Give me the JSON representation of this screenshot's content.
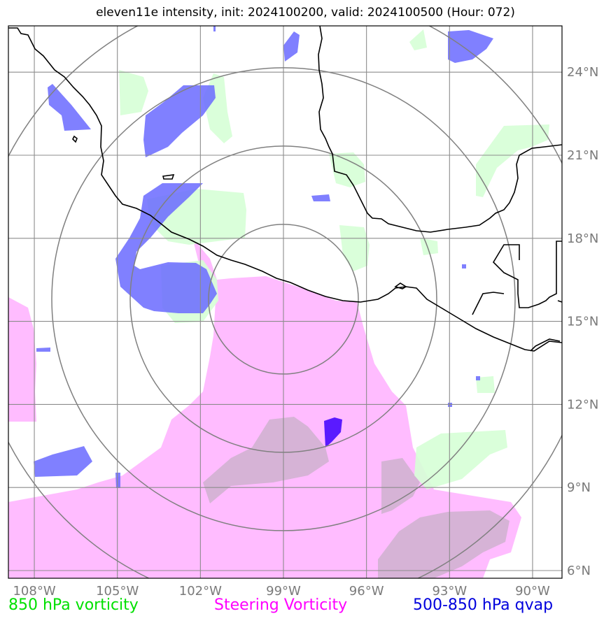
{
  "title": "eleven11e intensity, init: 2024100200, valid: 2024100500 (Hour: 072)",
  "map": {
    "lon_range": [
      -109,
      -89
    ],
    "lat_range": [
      5,
      26
    ],
    "lon_ticks": [
      {
        "value": -108,
        "label": "108°W"
      },
      {
        "value": -105,
        "label": "105°W"
      },
      {
        "value": -102,
        "label": "102°W"
      },
      {
        "value": -99,
        "label": "99°W"
      },
      {
        "value": -96,
        "label": "96°W"
      },
      {
        "value": -93,
        "label": "93°W"
      },
      {
        "value": -90,
        "label": "90°W"
      }
    ],
    "lat_ticks": [
      {
        "value": 6,
        "label": "6°N"
      },
      {
        "value": 9,
        "label": "9°N"
      },
      {
        "value": 12,
        "label": "12°N"
      },
      {
        "value": 15,
        "label": "15°N"
      },
      {
        "value": 18,
        "label": "18°N"
      },
      {
        "value": 21,
        "label": "21°N"
      },
      {
        "value": 24,
        "label": "24°N"
      }
    ],
    "range_rings_center": {
      "lon": -99,
      "lat": 15.8
    },
    "colors": {
      "vorticity_850": "#d6ffd6",
      "steering_vorticity": "#ffb8ff",
      "qvap_500_850": "#6a6aff",
      "grid": "#8c8c8c",
      "coast": "#000000"
    }
  },
  "legend": {
    "vorticity": {
      "label": "850 hPa vorticity",
      "color": "#00e000"
    },
    "steering": {
      "label": "Steering Vorticity",
      "color": "#ff00ff"
    },
    "qvap": {
      "label": "500-850 hPa qvap",
      "color": "#0000dd"
    }
  }
}
